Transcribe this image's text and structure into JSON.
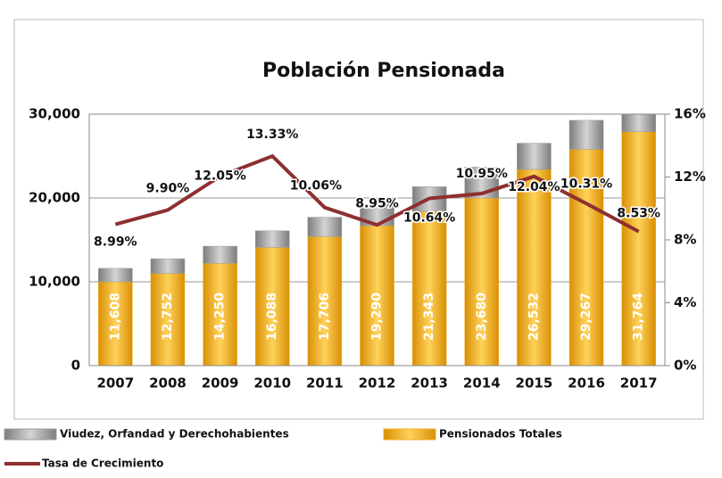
{
  "chart_data": {
    "type": "bar",
    "stacked": true,
    "title": "Población Pensionada",
    "categories": [
      "2007",
      "2008",
      "2009",
      "2010",
      "2011",
      "2012",
      "2013",
      "2014",
      "2015",
      "2016",
      "2017"
    ],
    "series": [
      {
        "name": "Pensionados Totales",
        "color": "#f2ad1e",
        "values": [
          10000,
          11000,
          12200,
          14100,
          15400,
          16700,
          18400,
          20000,
          23400,
          25800,
          27900
        ]
      },
      {
        "name": "Viudez, Orfandad y Derechohabientes",
        "color": "#9c9c9c",
        "values": [
          1608,
          1752,
          2050,
          1988,
          2306,
          2590,
          2943,
          3680,
          3132,
          3467,
          3864
        ]
      },
      {
        "name": "Tasa de Crecimiento",
        "color": "#8e2f30",
        "type": "line",
        "axis": "y2",
        "values": [
          8.99,
          9.9,
          12.05,
          13.33,
          10.06,
          8.95,
          10.64,
          10.95,
          12.04,
          10.31,
          8.53
        ],
        "value_labels": [
          "8.99%",
          "9.90%",
          "12.05%",
          "13.33%",
          "10.06%",
          "8.95%",
          "10.64%",
          "10.95%",
          "12.04%",
          "10.31%",
          "8.53%"
        ]
      }
    ],
    "totals": [
      "11,608",
      "12,752",
      "14,250",
      "16,088",
      "17,706",
      "19,290",
      "21,343",
      "23,680",
      "26,532",
      "29,267",
      "31,764"
    ],
    "ylim": [
      0,
      30000
    ],
    "yticks": [
      0,
      {
        "value": 10000,
        "label": "10,000"
      },
      {
        "value": 20000,
        "label": "20,000"
      },
      {
        "value": 30000,
        "label": "30,000"
      }
    ],
    "y2lim": [
      0,
      16
    ],
    "y2ticks": [
      {
        "value": 0,
        "label": "0%"
      },
      {
        "value": 4,
        "label": "4%"
      },
      {
        "value": 8,
        "label": "8%"
      },
      {
        "value": 12,
        "label": "12%"
      },
      {
        "value": 16,
        "label": "16%"
      }
    ],
    "grid": true,
    "legend": "bottom"
  }
}
